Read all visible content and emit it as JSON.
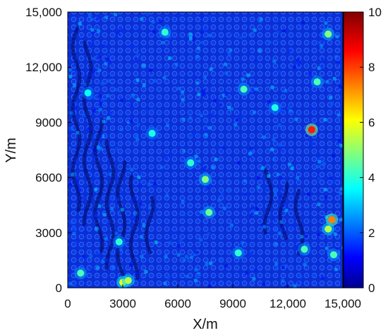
{
  "chart_data": {
    "type": "heatmap",
    "title": "",
    "xlabel": "X/m",
    "ylabel": "Y/m",
    "xlim": [
      0,
      15000
    ],
    "ylim": [
      0,
      15000
    ],
    "x_ticks": [
      "0",
      "3000",
      "6000",
      "9000",
      "12,000",
      "15,000"
    ],
    "y_ticks": [
      "0",
      "3000",
      "6000",
      "9000",
      "12,000",
      "15,000"
    ],
    "colorbar": {
      "range": [
        0,
        10
      ],
      "ticks": [
        "0",
        "2",
        "4",
        "6",
        "8",
        "10"
      ],
      "colormap": "jet"
    },
    "background_value": 1.1,
    "hotspots": [
      {
        "x": 3000,
        "y": 300,
        "value": 6.0
      },
      {
        "x": 3300,
        "y": 400,
        "value": 5.5
      },
      {
        "x": 700,
        "y": 800,
        "value": 4.5
      },
      {
        "x": 2800,
        "y": 2500,
        "value": 4.2
      },
      {
        "x": 7500,
        "y": 5900,
        "value": 5.0
      },
      {
        "x": 7700,
        "y": 4100,
        "value": 4.8
      },
      {
        "x": 6700,
        "y": 6800,
        "value": 4.2
      },
      {
        "x": 13300,
        "y": 8600,
        "value": 8.5
      },
      {
        "x": 14400,
        "y": 3700,
        "value": 7.5
      },
      {
        "x": 14200,
        "y": 3200,
        "value": 5.5
      },
      {
        "x": 14500,
        "y": 1800,
        "value": 4.5
      },
      {
        "x": 13600,
        "y": 11200,
        "value": 4.5
      },
      {
        "x": 14200,
        "y": 13800,
        "value": 5.0
      },
      {
        "x": 9600,
        "y": 10800,
        "value": 4.5
      },
      {
        "x": 5300,
        "y": 13900,
        "value": 4.2
      },
      {
        "x": 11300,
        "y": 9800,
        "value": 4.0
      },
      {
        "x": 4600,
        "y": 8400,
        "value": 4.0
      },
      {
        "x": 9300,
        "y": 1900,
        "value": 4.2
      },
      {
        "x": 1100,
        "y": 10600,
        "value": 3.8
      },
      {
        "x": 12900,
        "y": 2100,
        "value": 4.5
      }
    ],
    "grid": false,
    "legend": "colorbar-right"
  }
}
